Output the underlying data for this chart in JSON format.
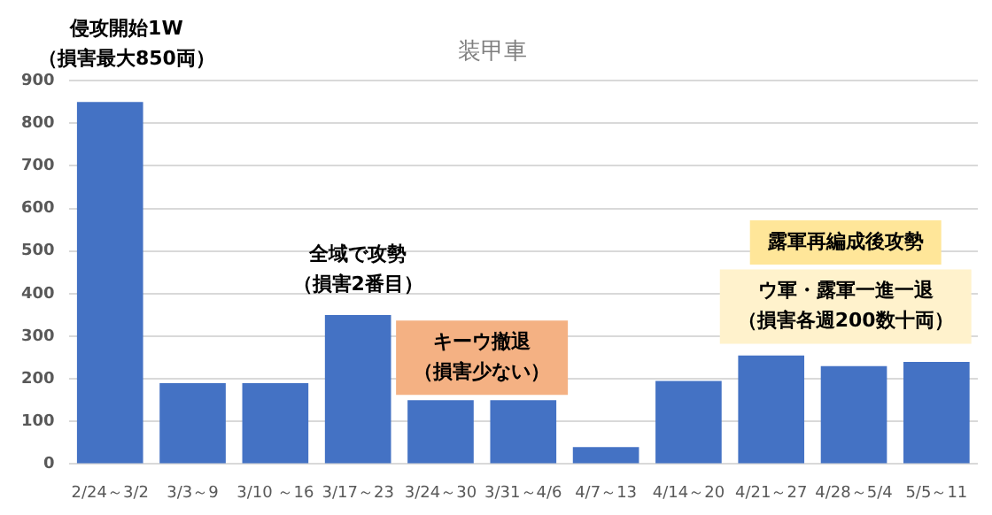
{
  "chart_data": {
    "type": "bar",
    "title": "装甲車",
    "categories": [
      "2/24～3/2",
      "3/3～9",
      "3/10 ～16",
      "3/17～23",
      "3/24～30",
      "3/31～4/6",
      "4/7～13",
      "4/14～20",
      "4/21～27",
      "4/28～5/4",
      "5/5～11"
    ],
    "values": [
      850,
      190,
      190,
      350,
      150,
      150,
      40,
      195,
      255,
      230,
      240
    ],
    "color": "#4472c4",
    "ylim": [
      0,
      900
    ],
    "yticks": [
      0,
      100,
      200,
      300,
      400,
      500,
      600,
      700,
      800,
      900
    ],
    "grid": "y",
    "annotations": [
      "侵攻開始1W（損害最大850両）",
      "全域で攻勢（損害2番目）",
      "キーウ撤退（損害少ない）",
      "露軍再編成後攻勢",
      "ウ軍・露軍一進一退（損害各週200数十両）"
    ]
  }
}
